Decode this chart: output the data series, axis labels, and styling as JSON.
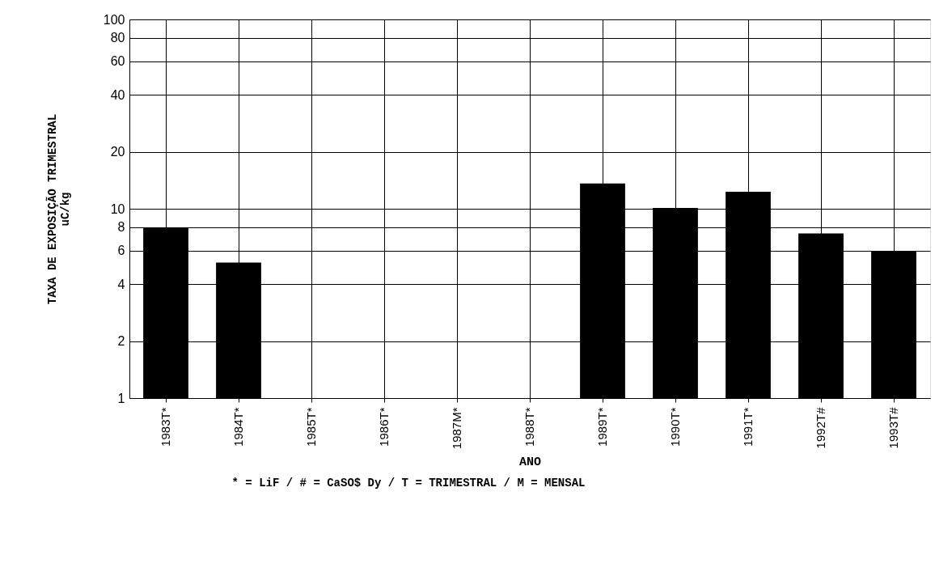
{
  "chart_data": {
    "type": "bar",
    "xlabel": "ANO",
    "ylabel": "TAXA DE EXPOSIÇÃO TRIMESTRAL\nuC/kg",
    "categories": [
      "1983T*",
      "1984T*",
      "1985T*",
      "1986T*",
      "1987M*",
      "1988T*",
      "1989T*",
      "1990T*",
      "1991T*",
      "1992T#",
      "1993T#"
    ],
    "values": [
      7.9,
      5.2,
      null,
      null,
      null,
      null,
      13.6,
      10.1,
      12.3,
      7.4,
      6.0
    ],
    "color": "#000000",
    "log": "y",
    "ylim": [
      1,
      100
    ],
    "yticks": [
      1,
      2,
      4,
      6,
      8,
      10,
      20,
      40,
      60,
      80,
      100
    ],
    "grid": true,
    "annotations": [
      "* = LiF / # = CaSO$ Dy / T = TRIMESTRAL / M = MENSAL"
    ]
  }
}
